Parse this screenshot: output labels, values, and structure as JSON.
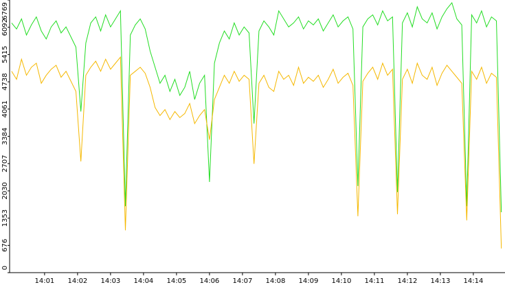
{
  "chart_data": {
    "type": "line",
    "x": [
      0,
      0.15,
      0.3,
      0.45,
      0.6,
      0.75,
      0.9,
      1.05,
      1.2,
      1.35,
      1.5,
      1.65,
      1.8,
      1.95,
      2.1,
      2.25,
      2.4,
      2.55,
      2.7,
      2.85,
      3,
      3.15,
      3.3,
      3.45,
      3.6,
      3.75,
      3.9,
      4.05,
      4.2,
      4.35,
      4.5,
      4.65,
      4.8,
      4.95,
      5.1,
      5.25,
      5.4,
      5.55,
      5.7,
      5.85,
      6,
      6.15,
      6.3,
      6.45,
      6.6,
      6.75,
      6.9,
      7.05,
      7.2,
      7.35,
      7.5,
      7.65,
      7.8,
      7.95,
      8.1,
      8.25,
      8.4,
      8.55,
      8.7,
      8.85,
      9,
      9.15,
      9.3,
      9.45,
      9.6,
      9.75,
      9.9,
      10.05,
      10.2,
      10.35,
      10.5,
      10.65,
      10.8,
      10.95,
      11.1,
      11.25,
      11.4,
      11.55,
      11.7,
      11.85,
      12,
      12.15,
      12.3,
      12.45,
      12.6,
      12.75,
      12.9,
      13.05,
      13.2,
      13.35,
      13.5,
      13.65,
      13.8,
      13.95,
      14.1,
      14.25,
      14.4,
      14.55,
      14.7,
      14.85
    ],
    "series": [
      {
        "color": "#22dd22",
        "values": [
          6200,
          6050,
          6300,
          5900,
          6150,
          6350,
          6000,
          5800,
          6100,
          6250,
          5950,
          6100,
          5850,
          5600,
          4000,
          5700,
          6200,
          6350,
          6000,
          6400,
          6100,
          6300,
          6500,
          1650,
          5900,
          6150,
          6300,
          6050,
          5500,
          5100,
          4700,
          4900,
          4500,
          4800,
          4400,
          4600,
          5000,
          4300,
          4700,
          4900,
          2250,
          5200,
          5700,
          6000,
          5800,
          6200,
          5900,
          6100,
          5950,
          3700,
          6000,
          6250,
          6100,
          5900,
          6500,
          6300,
          6100,
          6200,
          6350,
          6050,
          6250,
          6150,
          6300,
          6000,
          6200,
          6400,
          6100,
          6250,
          6350,
          6050,
          2150,
          6100,
          6300,
          6400,
          6150,
          6500,
          6250,
          6350,
          2000,
          6200,
          6450,
          6100,
          6600,
          6300,
          6200,
          6450,
          6050,
          6350,
          6550,
          6700,
          6300,
          6150,
          1650,
          6400,
          6200,
          6500,
          6100,
          6350,
          6250,
          1500
        ]
      },
      {
        "color": "#f5b800",
        "values": [
          5000,
          4800,
          5300,
          4900,
          5100,
          5200,
          4700,
          4900,
          5050,
          5150,
          4850,
          5000,
          4750,
          4500,
          2760,
          4900,
          5100,
          5250,
          5000,
          5300,
          5050,
          5200,
          5350,
          1050,
          4900,
          5000,
          5100,
          4950,
          4600,
          4100,
          3900,
          4050,
          3800,
          4000,
          3850,
          3950,
          4200,
          3700,
          3900,
          4050,
          3300,
          4300,
          4600,
          4900,
          4700,
          5000,
          4750,
          4900,
          4800,
          2700,
          4700,
          4900,
          4600,
          4500,
          5000,
          4800,
          4900,
          4650,
          5100,
          4700,
          4850,
          4750,
          4900,
          4600,
          4800,
          5050,
          4700,
          4850,
          4950,
          4650,
          1400,
          4750,
          4950,
          5100,
          4800,
          5200,
          4900,
          5050,
          1450,
          4800,
          5050,
          4700,
          5200,
          4900,
          4800,
          5100,
          4650,
          4950,
          5150,
          5000,
          4850,
          4700,
          1300,
          5000,
          4800,
          5100,
          4700,
          4950,
          4850,
          600
        ]
      }
    ],
    "xlim": [
      -0.06,
      14.96
    ],
    "xticks": [
      {
        "value": 1,
        "label": "14:01"
      },
      {
        "value": 2,
        "label": "14:02"
      },
      {
        "value": 3,
        "label": "14:03"
      },
      {
        "value": 4,
        "label": "14:04"
      },
      {
        "value": 5,
        "label": "14:05"
      },
      {
        "value": 6,
        "label": "14:06"
      },
      {
        "value": 7,
        "label": "14:07"
      },
      {
        "value": 8,
        "label": "14:08"
      },
      {
        "value": 9,
        "label": "14:09"
      },
      {
        "value": 10,
        "label": "14:10"
      },
      {
        "value": 11,
        "label": "14:11"
      },
      {
        "value": 12,
        "label": "14:12"
      },
      {
        "value": 13,
        "label": "14:13"
      },
      {
        "value": 14,
        "label": "14:14"
      }
    ],
    "ylim": [
      0,
      6769
    ],
    "yticks": [
      0,
      676,
      1353,
      2030,
      2707,
      3384,
      4061,
      4738,
      5415,
      6092,
      6769
    ]
  }
}
